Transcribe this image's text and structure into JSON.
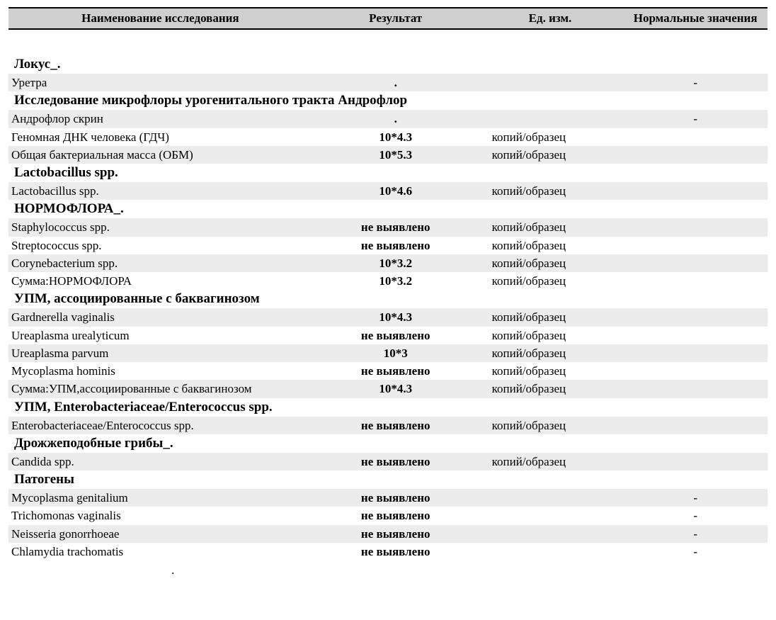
{
  "colors": {
    "header_bg": "#cfcfcf",
    "shade_bg": "#ececec",
    "border": "#000000",
    "text": "#000000",
    "page_bg": "#ffffff"
  },
  "font": {
    "family": "Times New Roman",
    "header_size_pt": 13,
    "section_size_pt": 14,
    "row_size_pt": 13
  },
  "columns": {
    "name": "Наименование исследования",
    "result": "Результат",
    "unit": "Ед. изм.",
    "norm": "Нормальные значения"
  },
  "sections": [
    {
      "title": "Локус_.",
      "rows": [
        {
          "name": "Уретра",
          "result": ".",
          "unit": "",
          "norm": "-",
          "shade": true
        }
      ]
    },
    {
      "title": "Исследование микрофлоры урогенитального тракта Андрофлор",
      "rows": [
        {
          "name": "Андрофлор скрин",
          "result": ".",
          "unit": "",
          "norm": "-",
          "shade": true
        },
        {
          "name": "Геномная ДНК человека (ГДЧ)",
          "result": "10*4.3",
          "unit": "копий/образец",
          "norm": "",
          "shade": false
        },
        {
          "name": "Общая бактериальная масса (ОБМ)",
          "result": "10*5.3",
          "unit": "копий/образец",
          "norm": "",
          "shade": true
        }
      ]
    },
    {
      "title": "Lactobacillus spp.",
      "rows": [
        {
          "name": "Lactobacillus spp.",
          "result": "10*4.6",
          "unit": "копий/образец",
          "norm": "",
          "shade": true
        }
      ]
    },
    {
      "title": "НОРМОФЛОРА_.",
      "rows": [
        {
          "name": "Staphylococcus spp.",
          "result": "не выявлено",
          "unit": "копий/образец",
          "norm": "",
          "shade": true
        },
        {
          "name": "Streptococcus spp.",
          "result": "не выявлено",
          "unit": "копий/образец",
          "norm": "",
          "shade": false
        },
        {
          "name": "Corynebacterium spp.",
          "result": "10*3.2",
          "unit": "копий/образец",
          "norm": "",
          "shade": true
        },
        {
          "name": "Сумма:НОРМОФЛОРА",
          "result": "10*3.2",
          "unit": "копий/образец",
          "norm": "",
          "shade": false
        }
      ]
    },
    {
      "title": "УПМ, ассоциированные с баквагинозом",
      "rows": [
        {
          "name": "Gardnerella vaginalis",
          "result": "10*4.3",
          "unit": "копий/образец",
          "norm": "",
          "shade": true
        },
        {
          "name": "Ureaplasma urealyticum",
          "result": "не выявлено",
          "unit": "копий/образец",
          "norm": "",
          "shade": false
        },
        {
          "name": "Ureaplasma parvum",
          "result": "10*3",
          "unit": "копий/образец",
          "norm": "",
          "shade": true
        },
        {
          "name": "Mycoplasma hominis",
          "result": "не выявлено",
          "unit": "копий/образец",
          "norm": "",
          "shade": false
        },
        {
          "name": "Сумма:УПМ,ассоциированные с баквагинозом",
          "result": "10*4.3",
          "unit": "копий/образец",
          "norm": "",
          "shade": true
        }
      ]
    },
    {
      "title": "УПМ, Enterobacteriaceae/Enterococcus spp.",
      "rows": [
        {
          "name": "Enterobacteriaceae/Enterococcus spp.",
          "result": "не выявлено",
          "unit": "копий/образец",
          "norm": "",
          "shade": true
        }
      ]
    },
    {
      "title": "Дрожжеподобные грибы_.",
      "rows": [
        {
          "name": "Candida spp.",
          "result": "не выявлено",
          "unit": "копий/образец",
          "norm": "",
          "shade": true
        }
      ]
    },
    {
      "title": "Патогены",
      "rows": [
        {
          "name": "Mycoplasma genitalium",
          "result": "не выявлено",
          "unit": "",
          "norm": "-",
          "shade": true
        },
        {
          "name": "Trichomonas vaginalis",
          "result": "не выявлено",
          "unit": "",
          "norm": "-",
          "shade": false
        },
        {
          "name": "Neisseria gonorrhoeae",
          "result": "не выявлено",
          "unit": "",
          "norm": "-",
          "shade": true
        },
        {
          "name": "Chlamydia trachomatis",
          "result": "не выявлено",
          "unit": "",
          "norm": "-",
          "shade": false
        }
      ]
    }
  ],
  "footer_dot": "."
}
